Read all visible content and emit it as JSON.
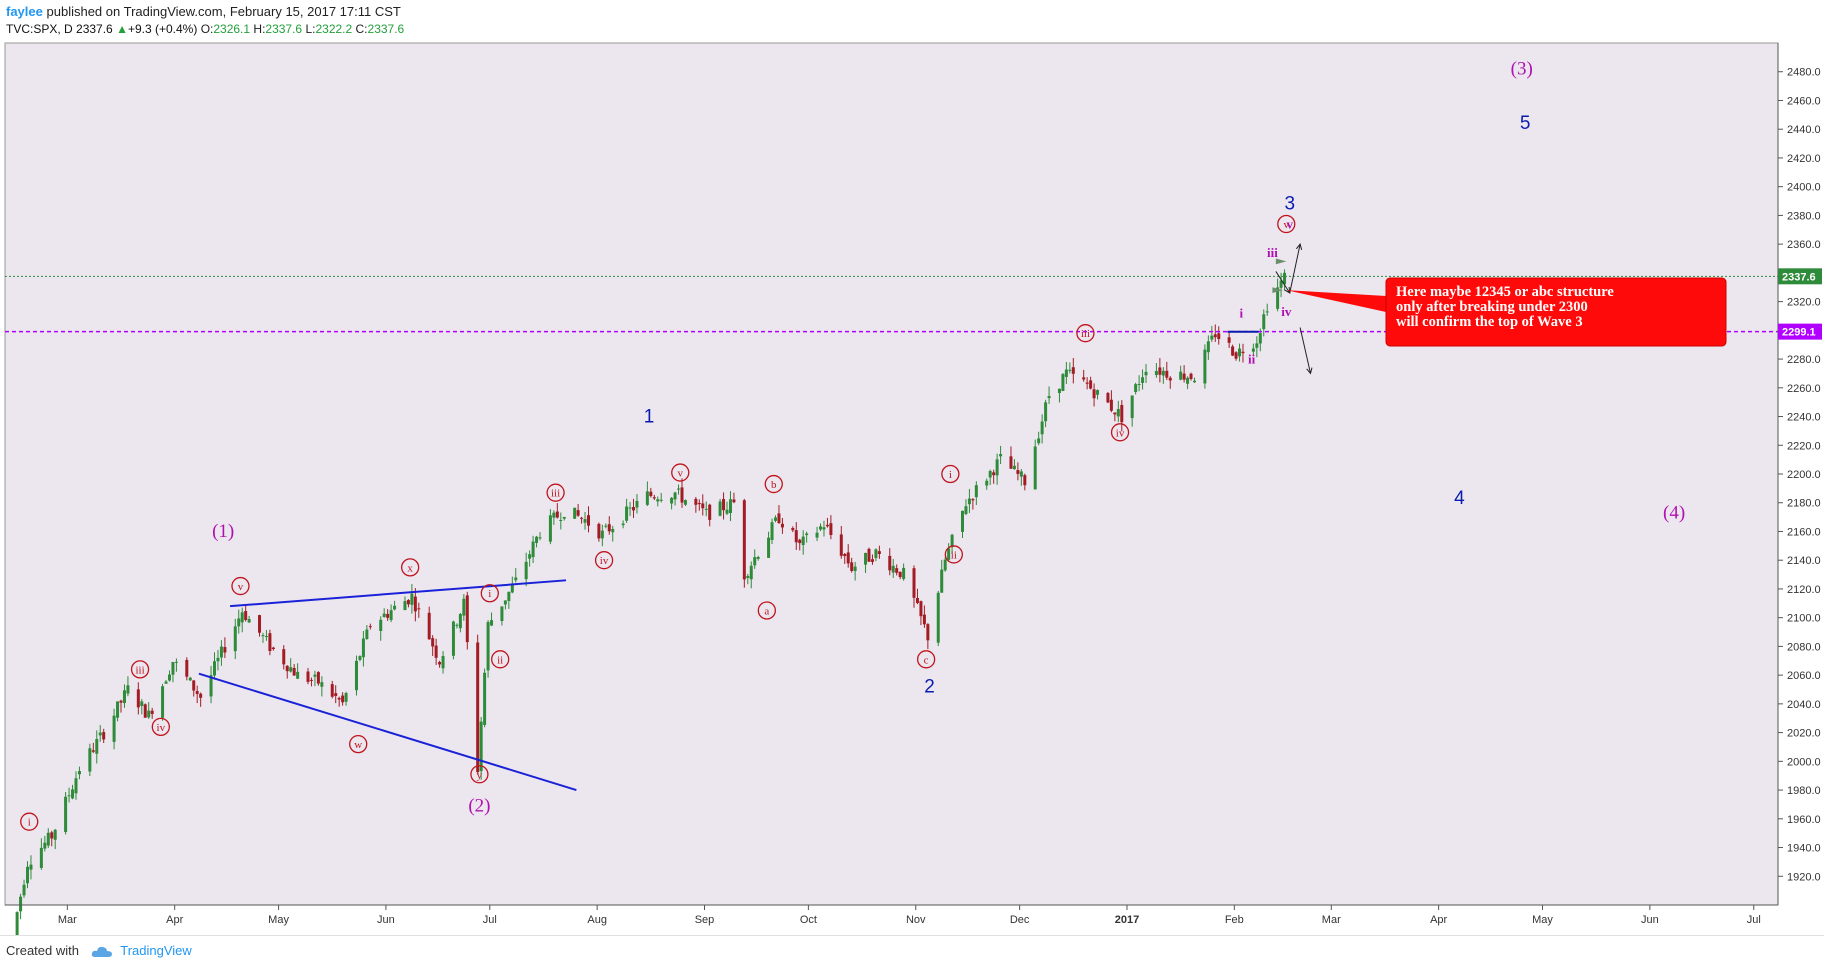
{
  "header": {
    "author": "faylee",
    "published": "published on TradingView.com, February 15, 2017 17:11 CST",
    "symbol": "TVC:SPX, D",
    "last": "2337.6",
    "change": "+9.3 (+0.4%)",
    "o_label": "O:",
    "o": "2326.1",
    "h_label": "H:",
    "h": "2337.6",
    "l_label": "L:",
    "l": "2322.2",
    "c_label": "C:",
    "c": "2337.6"
  },
  "footer": {
    "created_with": "Created with",
    "brand": "TradingView"
  },
  "colors": {
    "background": "#ece6ef",
    "up": "#2e8b3a",
    "down": "#a31c24",
    "wave_red": "#c0141c",
    "wave_blue": "#0a1cb0",
    "wave_purple": "#b010b0",
    "trendline": "#1a22d8",
    "price_line": "#2e8b3a",
    "level_line": "#b000ff",
    "callout": "#ff0a0a"
  },
  "chart_data": {
    "type": "candlestick",
    "interval": "D",
    "ylim": [
      1900,
      2500
    ],
    "price_ticks": [
      1920,
      1940,
      1960,
      1980,
      2000,
      2020,
      2040,
      2060,
      2080,
      2100,
      2120,
      2140,
      2160,
      2180,
      2200,
      2220,
      2240,
      2260,
      2280,
      2300,
      2320,
      2340,
      2360,
      2380,
      2400,
      2420,
      2440,
      2460,
      2480
    ],
    "x_ticks": [
      {
        "label": "Mar",
        "x": "2016-03-01"
      },
      {
        "label": "Apr",
        "x": "2016-04-01"
      },
      {
        "label": "May",
        "x": "2016-05-01"
      },
      {
        "label": "Jun",
        "x": "2016-06-01"
      },
      {
        "label": "Jul",
        "x": "2016-07-01"
      },
      {
        "label": "Aug",
        "x": "2016-08-01"
      },
      {
        "label": "Sep",
        "x": "2016-09-01"
      },
      {
        "label": "Oct",
        "x": "2016-10-01"
      },
      {
        "label": "Nov",
        "x": "2016-11-01"
      },
      {
        "label": "Dec",
        "x": "2016-12-01"
      },
      {
        "label": "2017",
        "x": "2017-01-01"
      },
      {
        "label": "Feb",
        "x": "2017-02-01"
      },
      {
        "label": "Mar",
        "x": "2017-03-01"
      },
      {
        "label": "Apr",
        "x": "2017-04-01"
      },
      {
        "label": "May",
        "x": "2017-05-01"
      },
      {
        "label": "Jun",
        "x": "2017-06-01"
      },
      {
        "label": "Jul",
        "x": "2017-07-01"
      }
    ],
    "x_range": [
      "2016-02-12",
      "2017-07-08"
    ],
    "price_label": "2337.6",
    "level_label": "2299.1",
    "current_price": 2337.6,
    "level": 2299.1,
    "anchors": [
      [
        "2016-02-12",
        1860
      ],
      [
        "2016-02-18",
        1930
      ],
      [
        "2016-02-25",
        1948
      ],
      [
        "2016-03-04",
        1995
      ],
      [
        "2016-03-11",
        2020
      ],
      [
        "2016-03-18",
        2050
      ],
      [
        "2016-03-24",
        2032
      ],
      [
        "2016-03-31",
        2070
      ],
      [
        "2016-04-08",
        2045
      ],
      [
        "2016-04-20",
        2105
      ],
      [
        "2016-04-28",
        2080
      ],
      [
        "2016-05-06",
        2060
      ],
      [
        "2016-05-12",
        2055
      ],
      [
        "2016-05-19",
        2040
      ],
      [
        "2016-05-27",
        2095
      ],
      [
        "2016-06-08",
        2115
      ],
      [
        "2016-06-16",
        2070
      ],
      [
        "2016-06-23",
        2110
      ],
      [
        "2016-06-27",
        1995
      ],
      [
        "2016-06-30",
        2095
      ],
      [
        "2016-07-08",
        2125
      ],
      [
        "2016-07-15",
        2160
      ],
      [
        "2016-07-22",
        2175
      ],
      [
        "2016-07-28",
        2168
      ],
      [
        "2016-08-02",
        2158
      ],
      [
        "2016-08-15",
        2185
      ],
      [
        "2016-08-23",
        2187
      ],
      [
        "2016-09-01",
        2172
      ],
      [
        "2016-09-09",
        2180
      ],
      [
        "2016-09-12",
        2130
      ],
      [
        "2016-09-22",
        2170
      ],
      [
        "2016-09-28",
        2150
      ],
      [
        "2016-10-05",
        2165
      ],
      [
        "2016-10-13",
        2135
      ],
      [
        "2016-10-20",
        2145
      ],
      [
        "2016-10-28",
        2130
      ],
      [
        "2016-11-04",
        2087
      ],
      [
        "2016-11-09",
        2140
      ],
      [
        "2016-11-15",
        2180
      ],
      [
        "2016-11-25",
        2210
      ],
      [
        "2016-12-02",
        2195
      ],
      [
        "2016-12-09",
        2255
      ],
      [
        "2016-12-14",
        2270
      ],
      [
        "2016-12-20",
        2262
      ],
      [
        "2016-12-30",
        2240
      ],
      [
        "2017-01-06",
        2275
      ],
      [
        "2017-01-13",
        2270
      ],
      [
        "2017-01-20",
        2268
      ],
      [
        "2017-01-26",
        2298
      ],
      [
        "2017-02-01",
        2284
      ],
      [
        "2017-02-07",
        2294
      ],
      [
        "2017-02-10",
        2318
      ],
      [
        "2017-02-15",
        2337
      ]
    ],
    "annotations": [
      {
        "text": "i",
        "style": "red-circle",
        "x": "2016-02-19",
        "y": 1958
      },
      {
        "text": "iii",
        "style": "red-circle",
        "x": "2016-03-22",
        "y": 2064
      },
      {
        "text": "iv",
        "style": "red-circle",
        "x": "2016-03-28",
        "y": 2024
      },
      {
        "text": "v",
        "style": "red-circle",
        "x": "2016-04-20",
        "y": 2122
      },
      {
        "text": "(1)",
        "style": "purple",
        "x": "2016-04-15",
        "y": 2156
      },
      {
        "text": "w",
        "style": "red-circle",
        "x": "2016-05-24",
        "y": 2012
      },
      {
        "text": "x",
        "style": "red-circle",
        "x": "2016-06-08",
        "y": 2135
      },
      {
        "text": "y",
        "style": "red-circle",
        "x": "2016-06-28",
        "y": 1991
      },
      {
        "text": "(2)",
        "style": "purple",
        "x": "2016-06-28",
        "y": 1965
      },
      {
        "text": "i",
        "style": "red-circle",
        "x": "2016-07-01",
        "y": 2117
      },
      {
        "text": "ii",
        "style": "red-circle",
        "x": "2016-07-04",
        "y": 2071
      },
      {
        "text": "iii",
        "style": "red-circle",
        "x": "2016-07-20",
        "y": 2187
      },
      {
        "text": "iv",
        "style": "red-circle",
        "x": "2016-08-03",
        "y": 2140
      },
      {
        "text": "1",
        "style": "blue",
        "x": "2016-08-16",
        "y": 2236
      },
      {
        "text": "v",
        "style": "red-circle",
        "x": "2016-08-25",
        "y": 2201
      },
      {
        "text": "b",
        "style": "red-circle",
        "x": "2016-09-21",
        "y": 2193
      },
      {
        "text": "a",
        "style": "red-circle",
        "x": "2016-09-19",
        "y": 2105
      },
      {
        "text": "c",
        "style": "red-circle",
        "x": "2016-11-04",
        "y": 2071
      },
      {
        "text": "2",
        "style": "blue",
        "x": "2016-11-05",
        "y": 2048
      },
      {
        "text": "i",
        "style": "red-circle",
        "x": "2016-11-11",
        "y": 2200
      },
      {
        "text": "ii",
        "style": "red-circle",
        "x": "2016-11-12",
        "y": 2144
      },
      {
        "text": "iii",
        "style": "red-circle",
        "x": "2016-12-20",
        "y": 2298
      },
      {
        "text": "iv",
        "style": "red-circle",
        "x": "2016-12-30",
        "y": 2229
      },
      {
        "text": "i",
        "style": "purple",
        "x": "2017-02-03",
        "y": 2309
      },
      {
        "text": "ii",
        "style": "purple",
        "x": "2017-02-06",
        "y": 2277
      },
      {
        "text": "iii",
        "style": "purple",
        "x": "2017-02-12",
        "y": 2351
      },
      {
        "text": "iv",
        "style": "purple",
        "x": "2017-02-16",
        "y": 2310
      },
      {
        "text": "v",
        "style": "purple",
        "x": "2017-02-17",
        "y": 2371
      },
      {
        "text": "v",
        "style": "red-circle",
        "x": "2017-02-16",
        "y": 2374
      },
      {
        "text": "3",
        "style": "blue",
        "x": "2017-02-17",
        "y": 2384
      },
      {
        "text": "(3)",
        "style": "purple",
        "x": "2017-04-25",
        "y": 2478
      },
      {
        "text": "5",
        "style": "blue",
        "x": "2017-04-26",
        "y": 2440
      },
      {
        "text": "4",
        "style": "blue",
        "x": "2017-04-07",
        "y": 2179
      },
      {
        "text": "(4)",
        "style": "purple",
        "x": "2017-06-08",
        "y": 2169
      }
    ],
    "trendlines": [
      {
        "from": [
          "2016-04-17",
          2108
        ],
        "to": [
          "2016-07-23",
          2126
        ]
      },
      {
        "from": [
          "2016-04-08",
          2061
        ],
        "to": [
          "2016-07-26",
          1980
        ]
      }
    ],
    "callout": {
      "text": "Here maybe 12345 or abc structure only after breaking under 2300 will confirm the top of Wave 3",
      "pointer": [
        "2017-02-16",
        2328
      ]
    }
  }
}
